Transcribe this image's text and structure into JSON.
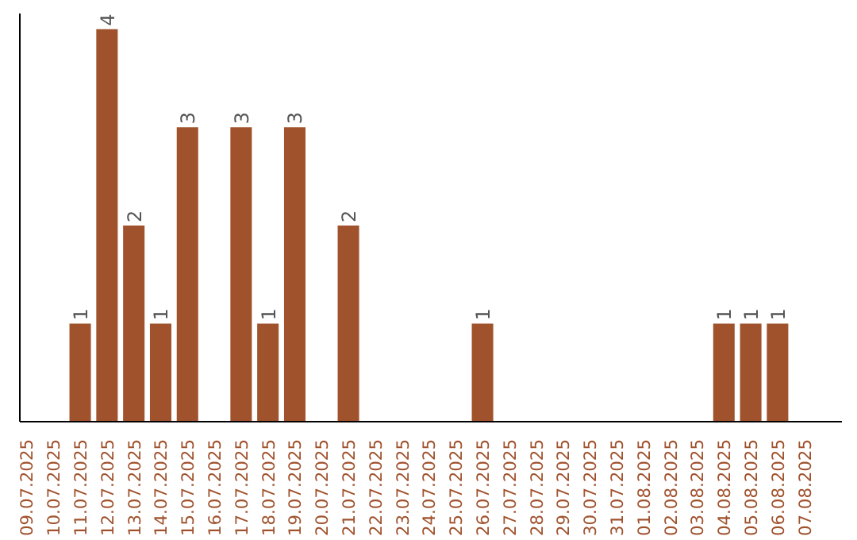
{
  "chart_data": {
    "type": "bar",
    "categories": [
      "09.07.2025",
      "10.07.2025",
      "11.07.2025",
      "12.07.2025",
      "13.07.2025",
      "14.07.2025",
      "15.07.2025",
      "16.07.2025",
      "17.07.2025",
      "18.07.2025",
      "19.07.2025",
      "20.07.2025",
      "21.07.2025",
      "22.07.2025",
      "23.07.2025",
      "24.07.2025",
      "25.07.2025",
      "26.07.2025",
      "27.07.2025",
      "28.07.2025",
      "29.07.2025",
      "30.07.2025",
      "31.07.2025",
      "01.08.2025",
      "02.08.2025",
      "03.08.2025",
      "04.08.2025",
      "05.08.2025",
      "06.08.2025",
      "07.08.2025"
    ],
    "values": [
      null,
      null,
      1,
      4,
      2,
      1,
      3,
      null,
      3,
      1,
      3,
      null,
      2,
      null,
      null,
      null,
      null,
      1,
      null,
      null,
      null,
      null,
      null,
      null,
      null,
      null,
      1,
      1,
      1,
      null
    ],
    "color": "#a0522d",
    "data_labels": true,
    "tick_labels": "x",
    "grid": false
  }
}
